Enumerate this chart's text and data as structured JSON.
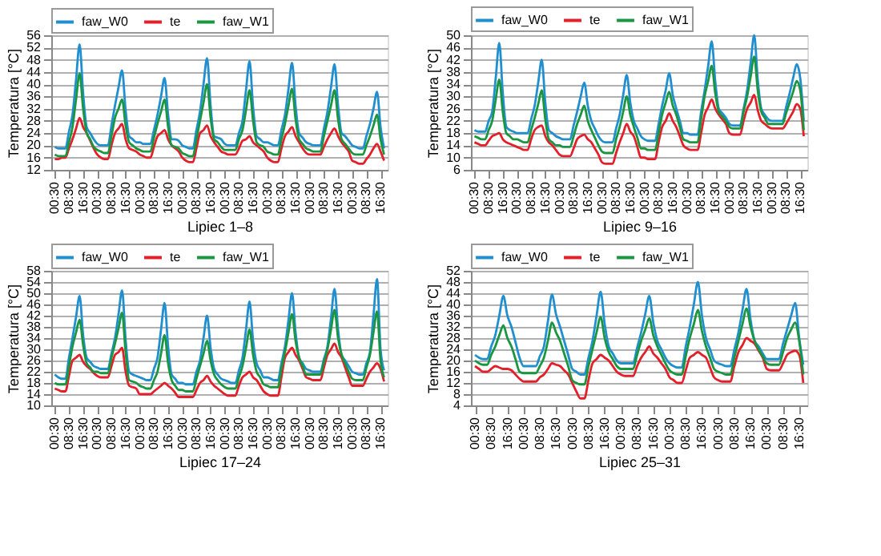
{
  "chart_data": [
    {
      "type": "line",
      "xlabel": "Lipiec 1–8",
      "ylabel": "Temperatura [°C]",
      "legend": "top",
      "grid": "y",
      "categories": [
        "00:30",
        null,
        null,
        null,
        "08:30",
        null,
        null,
        null,
        "16:30",
        null,
        null,
        null,
        "00:30",
        null,
        null,
        null,
        "08:30",
        null,
        null,
        null,
        "16:30",
        null,
        null,
        null,
        "00:30",
        null,
        null,
        null,
        "08:30",
        null,
        null,
        null,
        "16:30",
        null,
        null,
        null,
        "00:30",
        null,
        null,
        null,
        "08:30",
        null,
        null,
        null,
        "16:30",
        null,
        null,
        null,
        "00:30",
        null,
        null,
        null,
        "08:30",
        null,
        null,
        null,
        "16:30",
        null,
        null,
        null,
        "00:30",
        null,
        null,
        null,
        "08:30",
        null,
        null,
        null,
        "16:30",
        null,
        null,
        null,
        "00:30",
        null,
        null,
        null,
        "08:30",
        null,
        null,
        null,
        "16:30",
        null,
        null,
        null,
        "00:30",
        null,
        null,
        null,
        "08:30",
        null,
        null,
        null,
        "16:30",
        null
      ],
      "ylim": [
        12,
        56
      ],
      "yticks": [
        12,
        16,
        20,
        24,
        28,
        32,
        36,
        40,
        44,
        48,
        52,
        56
      ],
      "series": [
        {
          "name": "faw_W0",
          "color": "#1f8fd0",
          "values": [
            19.5,
            19,
            19,
            19,
            24.5,
            30,
            41.5,
            53,
            37,
            26,
            24,
            22,
            20.5,
            20,
            20,
            20,
            26.5,
            33,
            39,
            44.5,
            31.5,
            23,
            22,
            21,
            21,
            20.5,
            20.5,
            20.5,
            25,
            30,
            36,
            42,
            30,
            22,
            22,
            21.5,
            20,
            19.5,
            19,
            19,
            25,
            31,
            40,
            48.5,
            33,
            23,
            22.5,
            22,
            20.5,
            20,
            20,
            20,
            24,
            28,
            38,
            47.5,
            32.5,
            23,
            22,
            21,
            21,
            20.5,
            20,
            20,
            25,
            30,
            38.5,
            47,
            33,
            24,
            22.5,
            21,
            20.5,
            20,
            20,
            20,
            25.5,
            31,
            39,
            46.5,
            33,
            24,
            23,
            21.5,
            20,
            19.5,
            19,
            19,
            23,
            27,
            32,
            37.5,
            26,
            19
          ]
        },
        {
          "name": "te",
          "color": "#e3202a",
          "values": [
            15.5,
            15.5,
            16,
            16,
            19,
            22,
            25.5,
            29,
            26,
            24,
            21.5,
            19,
            17,
            16,
            15.5,
            15.5,
            20,
            24,
            25.5,
            27,
            22,
            19,
            18.5,
            18,
            17,
            16.5,
            16,
            16,
            19.5,
            23,
            24,
            25,
            22,
            20,
            19,
            18,
            16,
            15,
            14.5,
            14.5,
            19,
            24,
            25,
            26.5,
            23,
            21,
            19.5,
            18,
            17.5,
            17,
            17,
            17,
            19,
            21.5,
            22,
            23,
            21,
            20,
            19,
            18,
            16,
            15,
            14.5,
            14.5,
            19,
            23,
            24.5,
            26,
            23,
            21,
            19,
            17.5,
            17,
            17,
            17,
            17,
            19.5,
            22,
            24,
            25.5,
            23,
            21,
            19.5,
            18,
            15,
            14.5,
            14,
            14,
            15.5,
            17,
            19,
            20.5,
            18,
            15
          ]
        },
        {
          "name": "faw_W1",
          "color": "#1a9641",
          "values": [
            17,
            16.5,
            16.5,
            16.5,
            21,
            26,
            35,
            43.5,
            32,
            24,
            22,
            19.5,
            18.5,
            18,
            17.5,
            17.5,
            23,
            29,
            32,
            35,
            26.5,
            21,
            20,
            19,
            18.5,
            18,
            18,
            18,
            22.5,
            27,
            31,
            35,
            26,
            20,
            19.5,
            19,
            17.5,
            17,
            16.5,
            16.5,
            22,
            28,
            34,
            40,
            29,
            22,
            21,
            19.5,
            18.5,
            18.5,
            18.5,
            18.5,
            22,
            25,
            31.5,
            38,
            28,
            21,
            20,
            19.5,
            18,
            17.5,
            17,
            17,
            22,
            27,
            33,
            38.5,
            28.5,
            22,
            20.5,
            19,
            18.5,
            18,
            18,
            18,
            23,
            28,
            33,
            38,
            28.5,
            22,
            20.5,
            19,
            17.5,
            17,
            17,
            17,
            20,
            23,
            26.5,
            30,
            22,
            17
          ]
        }
      ]
    },
    {
      "type": "line",
      "xlabel": "Lipiec 9–16",
      "ylabel": "Temperatura [°C]",
      "legend": "top",
      "grid": "y",
      "categories": [
        "00:30",
        null,
        null,
        null,
        "08:30",
        null,
        null,
        null,
        "16:30",
        null,
        null,
        null,
        "00:30",
        null,
        null,
        null,
        "08:30",
        null,
        null,
        null,
        "16:30",
        null,
        null,
        null,
        "00:30",
        null,
        null,
        null,
        "08:30",
        null,
        null,
        null,
        "16:30",
        null,
        null,
        null,
        "00:30",
        null,
        null,
        null,
        "08:30",
        null,
        null,
        null,
        "16:30",
        null,
        null,
        null,
        "00:30",
        null,
        null,
        null,
        "08:30",
        null,
        null,
        null,
        "16:30",
        null,
        null,
        null,
        "00:30",
        null,
        null,
        null,
        "08:30",
        null,
        null,
        null,
        "16:30",
        null,
        null,
        null,
        "00:30",
        null,
        null,
        null,
        "08:30",
        null,
        null,
        null,
        "16:30",
        null,
        null,
        null,
        "00:30",
        null,
        null,
        null,
        "08:30",
        null,
        null,
        null,
        "16:30",
        null
      ],
      "ylim": [
        6,
        50
      ],
      "yticks": [
        6,
        10,
        14,
        18,
        22,
        26,
        30,
        34,
        38,
        42,
        46,
        50
      ],
      "series": [
        {
          "name": "faw_W0",
          "color": "#1f8fd0",
          "values": [
            19,
            18.5,
            18.5,
            18.5,
            22,
            25,
            36,
            47.5,
            31,
            20,
            19,
            18.5,
            18,
            18,
            18,
            18,
            22.5,
            27,
            34.5,
            42,
            28,
            19,
            18,
            17,
            16.5,
            16,
            16,
            16,
            20.5,
            25,
            30,
            34.5,
            27,
            22,
            19.5,
            17,
            15.5,
            15,
            15,
            15,
            19.5,
            24,
            30.5,
            37,
            28,
            22,
            19.5,
            17,
            16,
            15.5,
            15.5,
            15.5,
            21,
            27,
            32,
            37.5,
            30.5,
            26,
            22,
            18,
            18,
            17.5,
            17.5,
            17.5,
            25,
            32,
            40,
            48,
            35,
            26,
            24.5,
            23,
            21,
            20.5,
            20.5,
            20.5,
            26,
            32,
            41,
            50,
            35.5,
            26,
            24,
            22.5,
            22,
            22,
            22,
            22,
            26.5,
            31,
            36,
            40.5,
            36,
            22
          ]
        },
        {
          "name": "te",
          "color": "#e3202a",
          "values": [
            15,
            14.5,
            14,
            14,
            15.5,
            17,
            17.5,
            18,
            16,
            15,
            14.5,
            14,
            13.5,
            13,
            12.5,
            12.5,
            16,
            19,
            20,
            20.5,
            17,
            15,
            14,
            12.5,
            11,
            10.5,
            10.5,
            10.5,
            13,
            16,
            17,
            17.5,
            16,
            15,
            13,
            11,
            8.5,
            8,
            8,
            8,
            11.5,
            15,
            18,
            21,
            18.5,
            17,
            13.5,
            10,
            10,
            9.5,
            9.5,
            9.5,
            15,
            20,
            22,
            24.5,
            22,
            20,
            17,
            14,
            13,
            12.5,
            12.5,
            12.5,
            18,
            24,
            26.5,
            29,
            26,
            24,
            22.5,
            21,
            18,
            17.5,
            17.5,
            17.5,
            22,
            26,
            28,
            30.5,
            25.5,
            22,
            21,
            20,
            19.5,
            19.5,
            19.5,
            19.5,
            21,
            23,
            25,
            27.5,
            26,
            17
          ]
        },
        {
          "name": "faw_W1",
          "color": "#1a9641",
          "values": [
            17,
            16.5,
            16,
            16,
            19,
            22,
            29,
            35.5,
            25,
            18,
            17,
            16,
            16,
            15.5,
            15,
            15,
            19,
            23,
            27.5,
            32,
            22.5,
            16,
            15,
            14,
            14,
            13.5,
            13.5,
            13.5,
            17,
            21,
            24,
            27,
            22,
            19,
            16.5,
            14,
            12,
            11.5,
            11.5,
            11.5,
            16,
            20,
            25,
            30,
            24,
            20,
            16.5,
            13,
            13,
            12.5,
            12.5,
            12.5,
            18,
            24,
            28,
            31.5,
            27,
            24,
            20,
            16,
            15.5,
            15,
            15,
            15,
            22.5,
            30,
            35,
            40,
            31,
            25,
            23.5,
            22,
            20,
            19.5,
            19.5,
            19.5,
            25,
            30,
            36.5,
            43,
            32,
            25,
            23,
            21,
            21,
            21,
            21,
            21,
            24.5,
            28,
            31.5,
            35,
            32,
            19
          ]
        }
      ]
    },
    {
      "type": "line",
      "xlabel": "Lipiec 17–24",
      "ylabel": "Temperatura [°C]",
      "legend": "top",
      "grid": "y",
      "categories": [
        "00:30",
        null,
        null,
        null,
        "08:30",
        null,
        null,
        null,
        "16:30",
        null,
        null,
        null,
        "00:30",
        null,
        null,
        null,
        "08:30",
        null,
        null,
        null,
        "16:30",
        null,
        null,
        null,
        "00:30",
        null,
        null,
        null,
        "08:30",
        null,
        null,
        null,
        "16:30",
        null,
        null,
        null,
        "00:30",
        null,
        null,
        null,
        "08:30",
        null,
        null,
        null,
        "16:30",
        null,
        null,
        null,
        "00:30",
        null,
        null,
        null,
        "08:30",
        null,
        null,
        null,
        "16:30",
        null,
        null,
        null,
        "00:30",
        null,
        null,
        null,
        "08:30",
        null,
        null,
        null,
        "16:30",
        null,
        null,
        null,
        "00:30",
        null,
        null,
        null,
        "08:30",
        null,
        null,
        null,
        "16:30",
        null,
        null,
        null,
        "00:30",
        null,
        null,
        null,
        "08:30",
        null,
        null,
        null,
        "16:30",
        null
      ],
      "ylim": [
        10,
        58
      ],
      "yticks": [
        10,
        14,
        18,
        22,
        26,
        30,
        34,
        38,
        42,
        46,
        50,
        54,
        58
      ],
      "series": [
        {
          "name": "faw_W0",
          "color": "#1f8fd0",
          "values": [
            21,
            20,
            19.5,
            19.5,
            27,
            34,
            41.5,
            49,
            35,
            27,
            25.5,
            24,
            23.5,
            23,
            23,
            23,
            28.5,
            34,
            42.5,
            51,
            33.5,
            22,
            21,
            20.5,
            20,
            19.5,
            19,
            19,
            23,
            27,
            37,
            46.5,
            31,
            21,
            19.5,
            18,
            18,
            17.5,
            17.5,
            17.5,
            22,
            26,
            34,
            42,
            30.5,
            23,
            21,
            19.5,
            19,
            18.5,
            18,
            18,
            22.5,
            27,
            37,
            47,
            33,
            25,
            22.5,
            20,
            20,
            19.5,
            19,
            19,
            25,
            31,
            40.5,
            50,
            36,
            27,
            25,
            23,
            22.5,
            22,
            22,
            22,
            26.5,
            31,
            41,
            51.5,
            37,
            28,
            26,
            24,
            22,
            21.5,
            21,
            21,
            25,
            29,
            42,
            55,
            30,
            22.5
          ]
        },
        {
          "name": "te",
          "color": "#e3202a",
          "values": [
            16,
            15.5,
            15,
            15,
            20.5,
            26,
            27,
            28,
            25.5,
            24,
            23,
            21.5,
            20.5,
            20,
            20,
            20,
            24,
            28,
            29,
            30.5,
            22,
            17,
            16.5,
            16,
            14,
            14,
            14,
            14,
            15,
            16,
            17,
            18,
            17,
            16,
            14.5,
            13,
            13,
            13,
            13,
            13,
            15.5,
            18,
            19,
            20.5,
            18.5,
            17,
            16,
            15,
            14,
            13.5,
            13.5,
            13.5,
            17,
            20,
            21,
            22,
            20,
            19,
            17,
            15,
            14,
            13.5,
            13.5,
            13.5,
            20,
            27,
            29,
            30.5,
            28,
            26,
            23,
            20,
            19.5,
            19,
            19,
            19,
            23.5,
            28,
            30,
            32,
            29,
            27,
            23.5,
            20,
            17,
            17,
            17,
            17,
            19.5,
            22,
            23.5,
            25,
            23,
            18.5
          ]
        },
        {
          "name": "faw_W1",
          "color": "#1a9641",
          "values": [
            18,
            17.5,
            17.5,
            17.5,
            24,
            31,
            36,
            40.5,
            31.5,
            25,
            23.5,
            22,
            22,
            21.5,
            21.5,
            21.5,
            27,
            32,
            37.5,
            43,
            29,
            19,
            18.5,
            18,
            17,
            16.5,
            16,
            16,
            19,
            22,
            28.5,
            35,
            25,
            19,
            17,
            15.5,
            15.5,
            15,
            15,
            15,
            19.5,
            24,
            28.5,
            33,
            26,
            21,
            19,
            17.5,
            16.5,
            16,
            16,
            16,
            20,
            24,
            30.5,
            37,
            28,
            22,
            20,
            17.5,
            17,
            16.5,
            16.5,
            16.5,
            23,
            29,
            36,
            42.5,
            33,
            27,
            24,
            21,
            21,
            21,
            21,
            21,
            25.5,
            30,
            37,
            44,
            34,
            28,
            25,
            22,
            19.5,
            19,
            19,
            19,
            23.5,
            28,
            36,
            43.5,
            26,
            20
          ]
        }
      ]
    },
    {
      "type": "line",
      "xlabel": "Lipiec 25–31",
      "ylabel": "Temperatura [°C]",
      "legend": "top",
      "grid": "y",
      "categories": [
        "00:30",
        null,
        null,
        null,
        "08:30",
        null,
        null,
        null,
        "16:30",
        null,
        null,
        null,
        "00:30",
        null,
        null,
        null,
        "08:30",
        null,
        null,
        null,
        "16:30",
        null,
        null,
        null,
        "00:30",
        null,
        null,
        null,
        "08:30",
        null,
        null,
        null,
        "16:30",
        null,
        null,
        null,
        "00:30",
        null,
        null,
        null,
        "08:30",
        null,
        null,
        null,
        "16:30",
        null,
        null,
        null,
        "00:30",
        null,
        null,
        null,
        "08:30",
        null,
        null,
        null,
        "16:30",
        null,
        null,
        null,
        "00:30",
        null,
        null,
        null,
        "08:30",
        null,
        null,
        null,
        "16:30",
        null,
        null,
        null,
        "00:30",
        null,
        null,
        null,
        "08:30",
        null,
        null,
        null,
        "16:30",
        null
      ],
      "ylim": [
        4,
        52
      ],
      "yticks": [
        4,
        8,
        12,
        16,
        20,
        24,
        28,
        32,
        36,
        40,
        44,
        48,
        52
      ],
      "series": [
        {
          "name": "faw_W0",
          "color": "#1f8fd0",
          "values": [
            22,
            21,
            20.5,
            20.5,
            25,
            29,
            36,
            43,
            36,
            32,
            26.5,
            21,
            18,
            18,
            18,
            18,
            21.5,
            25,
            34,
            43.5,
            36.5,
            32,
            27,
            22,
            17,
            16,
            15,
            15,
            21,
            27,
            36,
            44.5,
            33,
            25,
            22.5,
            20,
            19,
            19,
            19,
            19,
            24.5,
            30,
            36.5,
            43,
            33.5,
            27,
            24,
            21,
            19,
            18,
            17.5,
            17.5,
            25,
            32,
            40,
            48,
            36,
            28,
            24,
            20,
            19,
            18.5,
            18,
            18,
            24,
            30,
            38,
            45.5,
            34.5,
            27,
            25,
            22.5,
            20.5,
            20.5,
            20.5,
            20.5,
            26,
            31,
            36,
            40.5,
            28,
            18.5
          ]
        },
        {
          "name": "te",
          "color": "#e3202a",
          "values": [
            18,
            17,
            16,
            16,
            17,
            18,
            17.5,
            17,
            17,
            16.5,
            15,
            13.5,
            12.5,
            12.5,
            12.5,
            12.5,
            14,
            15,
            17,
            19,
            18.5,
            18,
            16.5,
            15,
            12,
            9,
            6.5,
            6.5,
            13,
            19,
            20.5,
            22,
            21,
            20,
            18,
            16,
            15,
            14.5,
            14.5,
            14.5,
            18,
            21,
            23,
            25,
            22.5,
            21,
            19,
            17,
            14,
            13,
            12,
            12,
            16.5,
            21,
            22,
            23,
            22,
            21,
            17.5,
            14,
            13,
            12.5,
            12.5,
            12.5,
            18,
            23,
            25.5,
            28,
            27,
            26,
            23.5,
            21,
            17,
            16.5,
            16.5,
            16.5,
            19,
            22,
            23,
            23.5,
            22,
            12
          ]
        },
        {
          "name": "faw_W1",
          "color": "#1a9641",
          "values": [
            20,
            19,
            18.5,
            18.5,
            22,
            25,
            29,
            32.5,
            28,
            25,
            20.5,
            16,
            15.5,
            15.5,
            15.5,
            15.5,
            18,
            21,
            27,
            33.5,
            30,
            27,
            22.5,
            18,
            13,
            12,
            11.5,
            11.5,
            18,
            24,
            30,
            35.5,
            28,
            23,
            20.5,
            18,
            17,
            17,
            17,
            17,
            22,
            27,
            31,
            35,
            29,
            25,
            22,
            19,
            16.5,
            15.5,
            15,
            15,
            21.5,
            28,
            33,
            38,
            30.5,
            25,
            21,
            17,
            16,
            15.5,
            15,
            15,
            21,
            27,
            33,
            38.5,
            32,
            27,
            24,
            21.5,
            19,
            18.5,
            18.5,
            18.5,
            23,
            28,
            31,
            33.5,
            27,
            15
          ]
        }
      ]
    }
  ]
}
